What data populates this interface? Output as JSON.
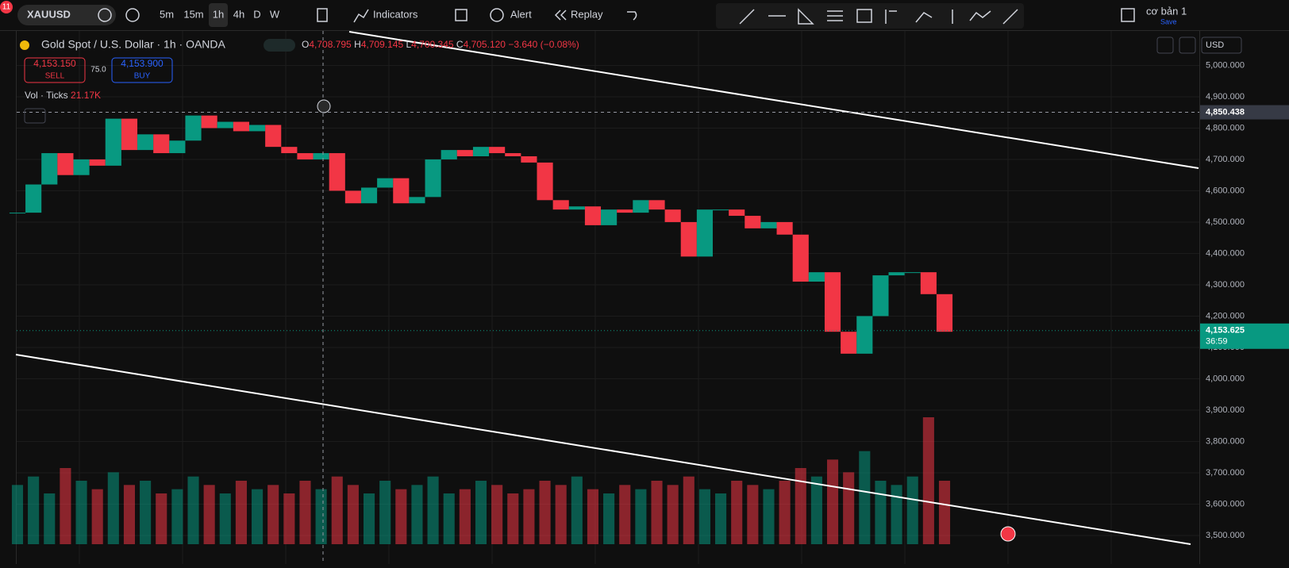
{
  "toolbar": {
    "badge": "11",
    "symbol": "XAUUSD",
    "intervals": [
      "5m",
      "15m",
      "1h",
      "4h",
      "D",
      "W"
    ],
    "indicators": "Indicators",
    "alert": "Alert",
    "replay": "Replay",
    "layout_name": "cơ bản 1",
    "save": "Save"
  },
  "legend": {
    "title": "Gold Spot / U.S. Dollar · 1h · OANDA",
    "o": "O",
    "o_value": "4,708.795",
    "h": "H",
    "h_value": "4,709.145",
    "l": "L",
    "l_value": "4,700.345",
    "c": "C",
    "c_value": "4,705.120",
    "change": "−3.640 (−0.08%)",
    "sell_price": "4,153.150",
    "sell": "SELL",
    "spread": "75.0",
    "buy_price": "4,153.900",
    "buy": "BUY",
    "volume_title": "Vol · Ticks",
    "volume_value": "21.17K"
  },
  "chart_data": {
    "type": "candlestick",
    "currency": "USD",
    "up_color": "#089981",
    "down_color": "#f23645",
    "ylim": [
      3472,
      5110
    ],
    "yticks": [
      {
        "value": 3500,
        "label": "3,500.000"
      },
      {
        "value": 3600,
        "label": "3,600.000"
      },
      {
        "value": 3700,
        "label": "3,700.000"
      },
      {
        "value": 3800,
        "label": "3,800.000"
      },
      {
        "value": 3900,
        "label": "3,900.000"
      },
      {
        "value": 4000,
        "label": "4,000.000"
      },
      {
        "value": 4100,
        "label": "4,100.000"
      },
      {
        "value": 4200,
        "label": "4,200.000"
      },
      {
        "value": 4300,
        "label": "4,300.000"
      },
      {
        "value": 4400,
        "label": "4,400.000"
      },
      {
        "value": 4500,
        "label": "4,500.000"
      },
      {
        "value": 4600,
        "label": "4,600.000"
      },
      {
        "value": 4700,
        "label": "4,700.000"
      },
      {
        "value": 4800,
        "label": "4,800.000"
      },
      {
        "value": 4900,
        "label": "4,900.000"
      },
      {
        "value": 5000,
        "label": "5,000.000"
      }
    ],
    "crosshair": {
      "value": 4850.438,
      "label": "4,850.438"
    },
    "last_price": {
      "value": 4153.625,
      "label": "4,153.625",
      "countdown": "36:59"
    },
    "values": [
      4530,
      4620,
      4720,
      4650,
      4700,
      4680,
      4830,
      4730,
      4780,
      4720,
      4760,
      4840,
      4800,
      4820,
      4790,
      4810,
      4740,
      4720,
      4700,
      4720,
      4600,
      4560,
      4610,
      4640,
      4560,
      4580,
      4700,
      4730,
      4710,
      4740,
      4720,
      4710,
      4690,
      4570,
      4540,
      4550,
      4490,
      4540,
      4530,
      4570,
      4540,
      4500,
      4390,
      4540,
      4540,
      4520,
      4480,
      4500,
      4460,
      4310,
      4340,
      4150,
      4080,
      4200,
      4330,
      4340,
      4340,
      4270,
      4150
    ],
    "volumes": [
      14000,
      16000,
      12000,
      18000,
      15000,
      13000,
      17000,
      14000,
      15000,
      12000,
      13000,
      16000,
      14000,
      12000,
      15000,
      13000,
      14000,
      12000,
      15000,
      13000,
      16000,
      14000,
      12000,
      15000,
      13000,
      14000,
      16000,
      12000,
      13000,
      15000,
      14000,
      12000,
      13000,
      15000,
      14000,
      16000,
      13000,
      12000,
      14000,
      13000,
      15000,
      14000,
      16000,
      13000,
      12000,
      15000,
      14000,
      13000,
      15000,
      18000,
      16000,
      20000,
      17000,
      22000,
      15000,
      14000,
      16000,
      30000,
      15000
    ]
  }
}
